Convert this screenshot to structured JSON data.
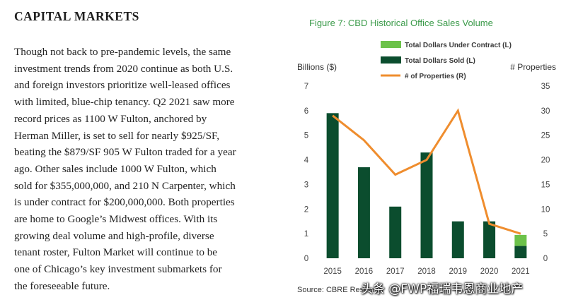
{
  "article": {
    "heading": "CAPITAL MARKETS",
    "lines": [
      "Though not back to pre-pandemic levels, the same",
      "investment trends from 2020 continue as both U.S.",
      "and foreign investors prioritize well-leased offices",
      "with limited, blue-chip tenancy. Q2 2021 saw more",
      "record prices as 1100 W Fulton, anchored by",
      "Herman Miller, is set to sell for nearly $925/SF,",
      "beating the $879/SF 905 W Fulton traded for a year",
      "ago. Other sales include 1000 W Fulton, which",
      "sold for $355,000,000, and 210 N Carpenter, which",
      "is under contract for $200,000,000. Both properties",
      "are home to Google’s Midwest offices. With its",
      "growing deal volume and high-profile, diverse",
      "tenant roster, Fulton Market will continue to be",
      "one of Chicago’s key investment submarkets for",
      "the foreseeable future."
    ]
  },
  "chart_data": {
    "type": "bar",
    "title": "Figure 7: CBD Historical Office Sales Volume",
    "ylabel_left": "Billions ($)",
    "ylabel_right": "# Properties",
    "categories": [
      "2015",
      "2016",
      "2017",
      "2018",
      "2019",
      "2020",
      "2021"
    ],
    "ylim_left": [
      0,
      7
    ],
    "ylim_right": [
      0,
      35
    ],
    "yticks_left": [
      "0",
      "1",
      "2",
      "3",
      "4",
      "5",
      "6",
      "7"
    ],
    "yticks_right": [
      "0",
      "5",
      "10",
      "15",
      "20",
      "25",
      "30",
      "35"
    ],
    "series": [
      {
        "name": "Total Dollars Sold (L)",
        "type": "bar",
        "axis": "left",
        "color": "#0b4d2e",
        "values": [
          5.9,
          3.7,
          2.1,
          4.3,
          1.5,
          1.5,
          0.5
        ]
      },
      {
        "name": "Total Dollars Under Contract (L)",
        "type": "bar-stacked",
        "axis": "left",
        "color": "#6cc24a",
        "values": [
          0,
          0,
          0,
          0,
          0,
          0,
          0.45
        ]
      },
      {
        "name": "# of Properties (R)",
        "type": "line",
        "axis": "right",
        "color": "#ef8d2e",
        "values": [
          29,
          24,
          17,
          20,
          30,
          7,
          5
        ]
      }
    ],
    "legend_position": "top",
    "grid": false,
    "source": "Source: CBRE Research"
  },
  "watermark": "头条 @FWP福瑞韦恩商业地产"
}
